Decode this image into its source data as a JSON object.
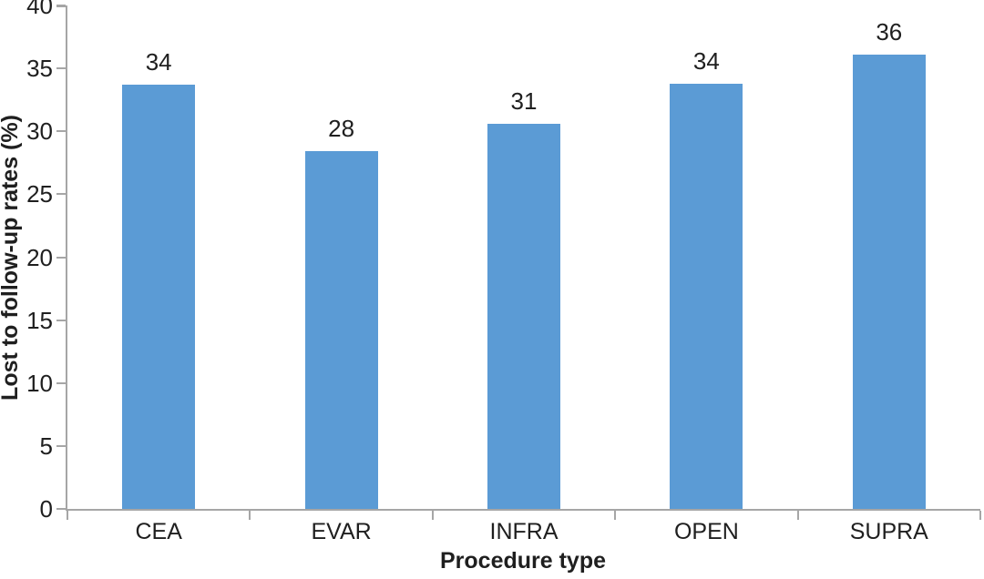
{
  "chart_data": {
    "type": "bar",
    "title": "",
    "categories": [
      "CEA",
      "EVAR",
      "INFRA",
      "OPEN",
      "SUPRA"
    ],
    "values": [
      34,
      28,
      31,
      34,
      36
    ],
    "bar_top_positions": [
      33.7,
      28.4,
      30.6,
      33.8,
      36.1
    ],
    "xlabel": "Procedure type",
    "ylabel": "Lost to follow-up rates (%)",
    "ylim": [
      0,
      40
    ],
    "yticks": [
      0,
      5,
      10,
      15,
      20,
      25,
      30,
      35,
      40
    ],
    "grid": false,
    "legend": "none",
    "data_labels": true,
    "colors": {
      "bar_fill": "#5b9bd5",
      "axis_line": "#a6a6a6",
      "text": "#1f1f1f",
      "background": "#ffffff"
    }
  }
}
